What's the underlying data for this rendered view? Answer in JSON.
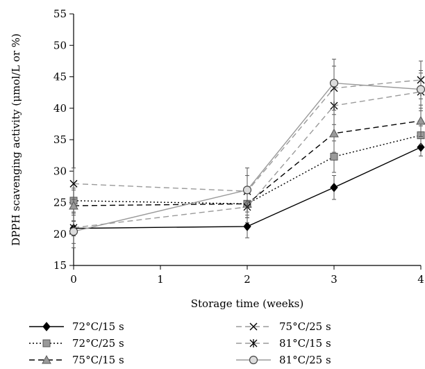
{
  "chart_data": {
    "type": "line",
    "xlabel": "Storage time (weeks)",
    "ylabel": "DPPH scavenging activity (μmol/L or %)",
    "xlim": [
      0,
      4
    ],
    "ylim": [
      15,
      55
    ],
    "xticks": [
      "0",
      "1",
      "2",
      "3",
      "4"
    ],
    "yticks": [
      "15",
      "20",
      "25",
      "30",
      "35",
      "40",
      "45",
      "50",
      "55"
    ],
    "x": [
      0,
      2,
      3,
      4
    ],
    "series": [
      {
        "name": "72°C/15 s",
        "marker": "diamond",
        "color": "#000000",
        "dash": "solid",
        "values": [
          20.9,
          21.2,
          27.4,
          33.8
        ],
        "err": [
          1.2,
          1.8,
          1.9,
          1.4
        ]
      },
      {
        "name": "72°C/25 s",
        "marker": "square",
        "color": "#000000",
        "dash": "dotted",
        "values": [
          25.3,
          24.8,
          32.3,
          35.7
        ],
        "err": [
          2.0,
          2.2,
          2.5,
          1.5
        ]
      },
      {
        "name": "75°C/15 s",
        "marker": "triangle",
        "color": "#000000",
        "dash": "dashed",
        "values": [
          24.5,
          24.8,
          36.0,
          38.0
        ],
        "err": [
          2.5,
          2.2,
          3.0,
          2.5
        ]
      },
      {
        "name": "75°C/25 s",
        "marker": "x",
        "color": "#9a9a9a",
        "dash": "dashed",
        "values": [
          28.0,
          26.8,
          43.2,
          44.5
        ],
        "err": [
          2.5,
          2.5,
          3.5,
          3.0
        ]
      },
      {
        "name": "81°C/15 s",
        "marker": "asterisk",
        "color": "#9a9a9a",
        "dash": "dashed",
        "values": [
          21.0,
          24.3,
          40.4,
          42.6
        ],
        "err": [
          2.5,
          2.5,
          3.0,
          3.0
        ]
      },
      {
        "name": "81°C/25 s",
        "marker": "circle",
        "color": "#9a9a9a",
        "dash": "solid",
        "values": [
          20.4,
          27.0,
          44.0,
          43.0
        ],
        "err": [
          2.6,
          3.5,
          3.8,
          3.0
        ]
      }
    ],
    "legend_position": "bottom"
  }
}
